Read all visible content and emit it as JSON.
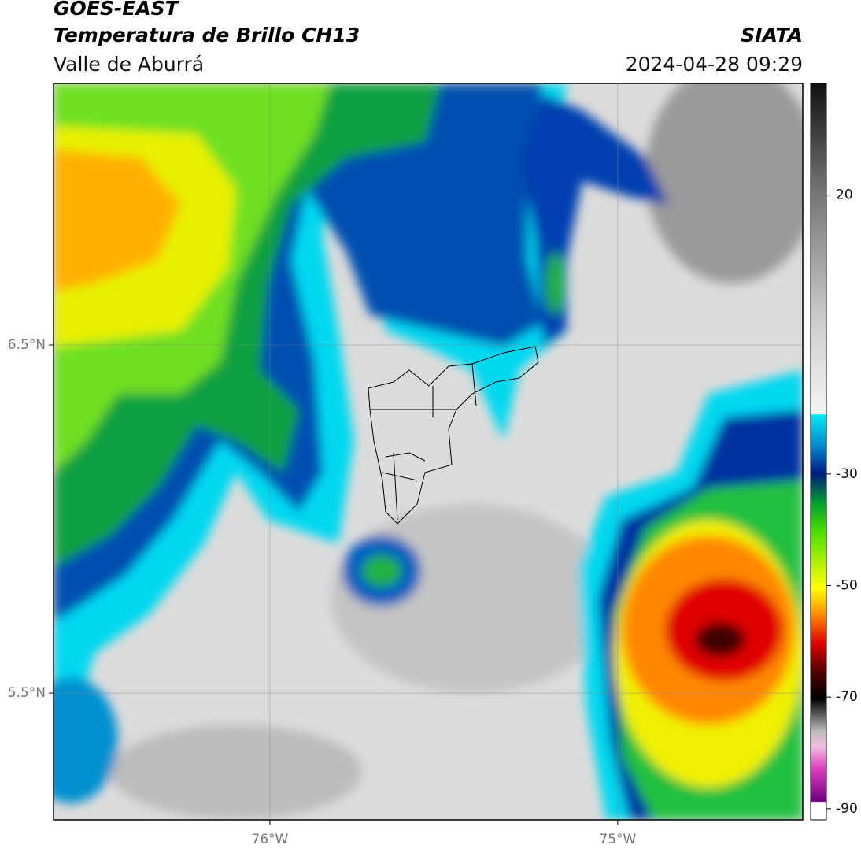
{
  "header": {
    "title": "GOES-EAST",
    "subtitle": "Temperatura de Brillo CH13",
    "region": "Valle de Aburrá",
    "source": "SIATA",
    "datetime": "2024-04-28 09:29"
  },
  "map": {
    "xlim": [
      -76.622,
      -74.468
    ],
    "ylim": [
      5.136,
      7.251
    ],
    "xticks": [
      {
        "value": -76,
        "label": "76°W"
      },
      {
        "value": -75,
        "label": "75°W"
      }
    ],
    "yticks": [
      {
        "value": 6.5,
        "label": "6.5°N"
      },
      {
        "value": 5.5,
        "label": "5.5°N"
      }
    ]
  },
  "colorbar": {
    "lim": [
      -92,
      40
    ],
    "ticks": [
      20,
      -30,
      -50,
      -70,
      -90
    ]
  }
}
